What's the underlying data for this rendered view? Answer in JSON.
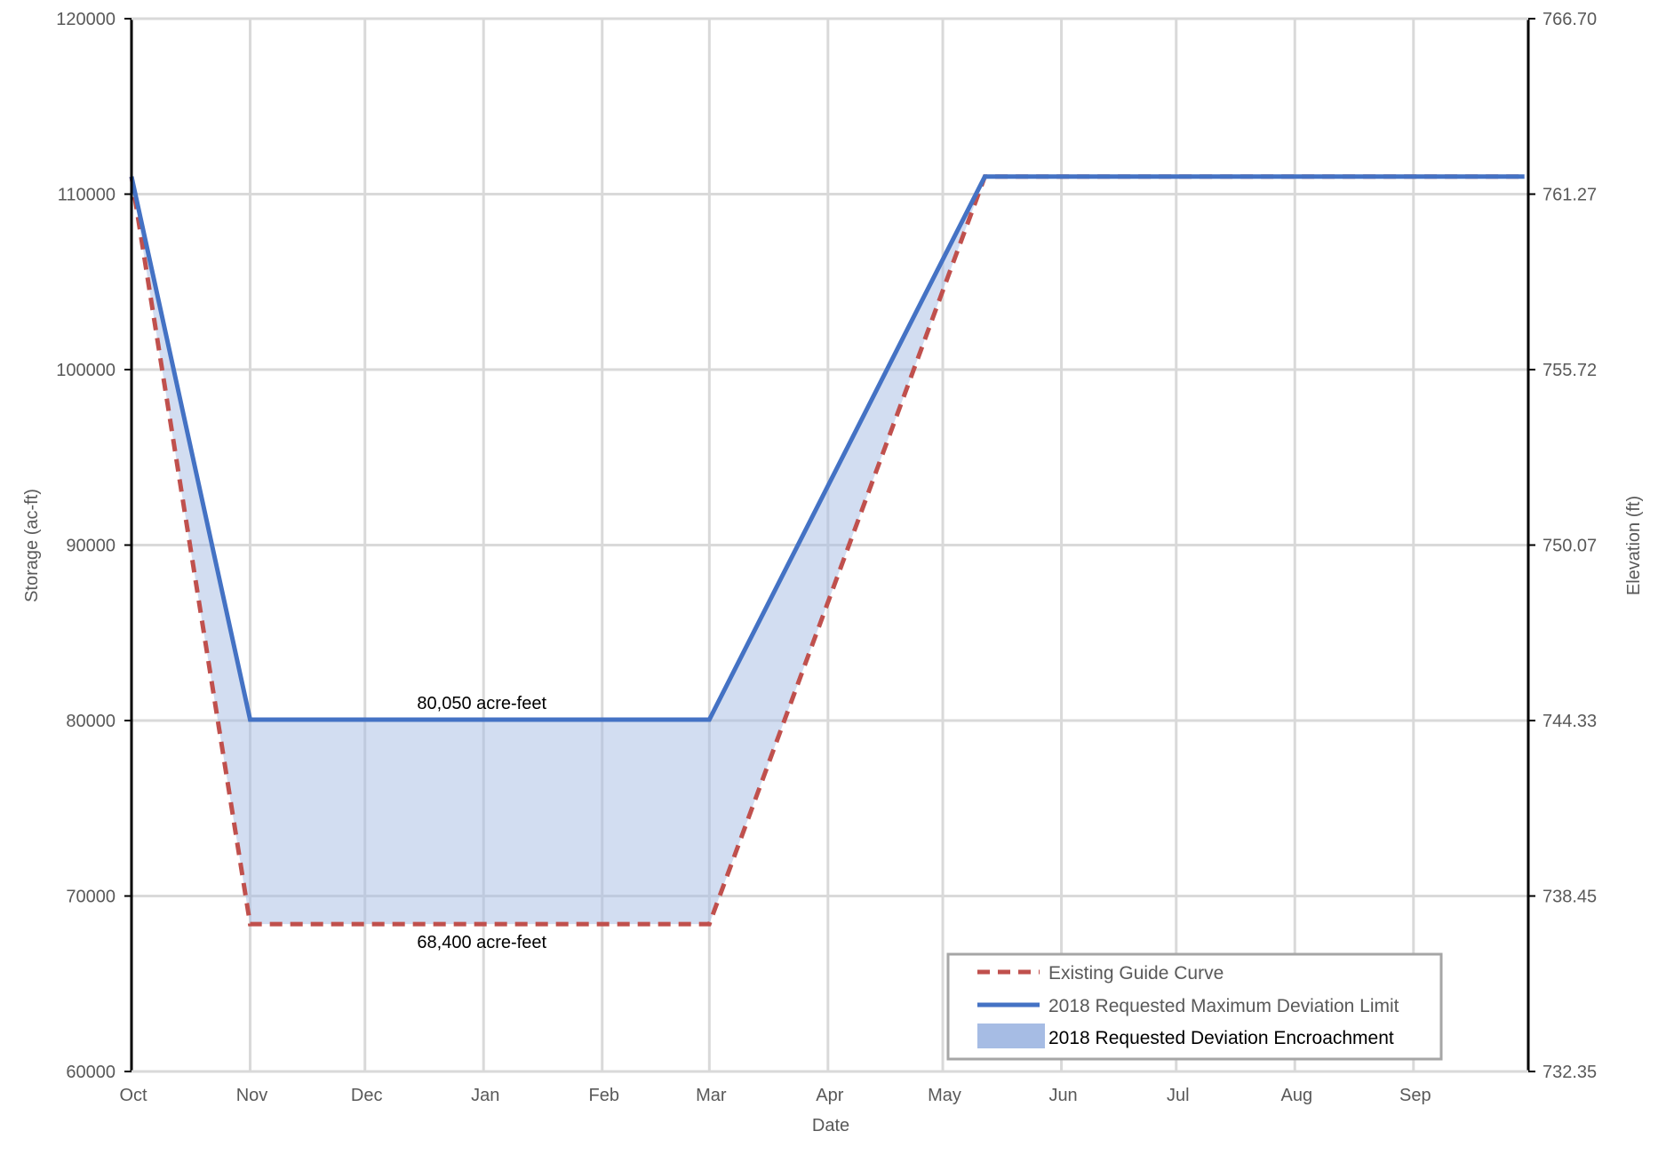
{
  "chart_data": {
    "type": "line",
    "xlabel": "Date",
    "ylabel": "Storage (ac-ft)",
    "y2label": "Elevation (ft)",
    "x_months": [
      "Oct",
      "Nov",
      "Dec",
      "Jan",
      "Feb",
      "Mar",
      "Apr",
      "May",
      "Jun",
      "Jul",
      "Aug",
      "Sep"
    ],
    "ylim": [
      60000,
      120000
    ],
    "y_ticks": [
      "60000",
      "70000",
      "80000",
      "90000",
      "100000",
      "110000",
      "120000"
    ],
    "y2_ticks": [
      "732.35",
      "738.45",
      "744.33",
      "750.07",
      "755.72",
      "761.27",
      "766.70"
    ],
    "grid": true,
    "legend_position": "bottom-right",
    "series": [
      {
        "name": "Existing Guide Curve",
        "style": "dashed",
        "color": "#C0504D",
        "points": [
          {
            "x": "Oct 1",
            "y": 111000
          },
          {
            "x": "Nov 1",
            "y": 68400
          },
          {
            "x": "Mar 1",
            "y": 68400
          },
          {
            "x": "May 12",
            "y": 111000
          },
          {
            "x": "Sep 30",
            "y": 111000
          }
        ]
      },
      {
        "name": "2018 Requested Maximum Deviation Limit",
        "style": "solid",
        "color": "#4472C4",
        "points": [
          {
            "x": "Oct 1",
            "y": 111000
          },
          {
            "x": "Nov 1",
            "y": 80050
          },
          {
            "x": "Mar 1",
            "y": 80050
          },
          {
            "x": "May 12",
            "y": 111000
          },
          {
            "x": "Sep 30",
            "y": 111000
          }
        ]
      }
    ],
    "area": {
      "name": "2018 Requested Deviation Encroachment",
      "color": "#A6BCE4",
      "between": [
        "Existing Guide Curve",
        "2018 Requested Maximum Deviation Limit"
      ]
    },
    "annotations": [
      {
        "text": "80,050 acre-feet",
        "x": "Jan 1",
        "y": 80050
      },
      {
        "text": "68,400 acre-feet",
        "x": "Jan 1",
        "y": 68400
      }
    ]
  }
}
